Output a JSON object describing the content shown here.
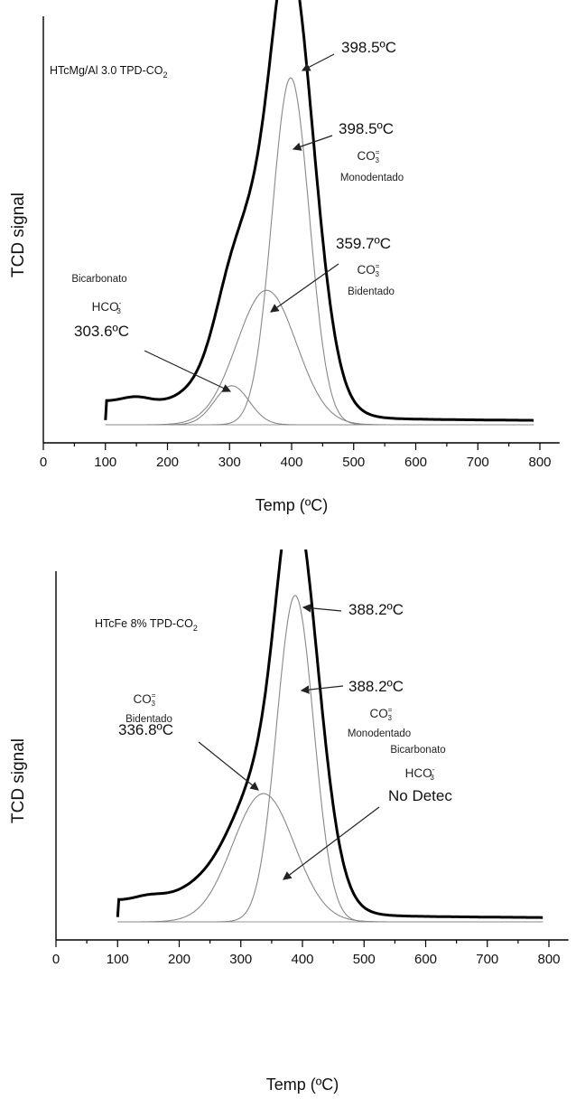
{
  "chart_data": [
    {
      "type": "line",
      "title": "HTcMg/Al 3.0  TPD-CO",
      "title_subscript": "2",
      "xlabel": "Temp (ºC)",
      "ylabel": "TCD signal",
      "xlim": [
        0,
        820
      ],
      "xticks": [
        "0",
        "100",
        "200",
        "300",
        "400",
        "500",
        "600",
        "700",
        "800"
      ],
      "yticks": false,
      "series": [
        {
          "role": "total",
          "peaks": [
            {
              "center": 303.6,
              "height": 0.09,
              "width": 28
            },
            {
              "center": 359.7,
              "height": 0.31,
              "width": 48
            },
            {
              "center": 398.5,
              "height": 0.8,
              "width": 30
            }
          ],
          "baseline": 0.02
        }
      ],
      "peaks": [
        {
          "species": "HCO",
          "species_charge": "-",
          "species_subscript": "3",
          "species_name": "Bicarbonato",
          "temp_label": "303.6ºC",
          "center": 303.6,
          "height": 0.09,
          "width": 28
        },
        {
          "species": "CO",
          "species_charge": "=",
          "species_subscript": "3",
          "species_name": "Bidentado",
          "temp_label": "359.7ºC",
          "center": 359.7,
          "height": 0.31,
          "width": 48
        },
        {
          "species": "CO",
          "species_charge": "=",
          "species_subscript": "3",
          "species_name": "Monodentado",
          "temp_label": "398.5ºC",
          "center": 398.5,
          "height": 0.8,
          "width": 30
        }
      ],
      "max_label": "398.5ºC"
    },
    {
      "type": "line",
      "title": "HTcFe 8%  TPD-CO",
      "title_subscript": "2",
      "xlabel": "Temp (ºC)",
      "ylabel": "TCD signal",
      "xlim": [
        0,
        820
      ],
      "xticks": [
        "0",
        "100",
        "200",
        "300",
        "400",
        "500",
        "600",
        "700",
        "800"
      ],
      "yticks": false,
      "peaks": [
        {
          "species": "CO",
          "species_charge": "=",
          "species_subscript": "3",
          "species_name": "Bidentado",
          "temp_label": "336.8ºC",
          "center": 336.8,
          "height": 0.33,
          "width": 50
        },
        {
          "species": "CO",
          "species_charge": "=",
          "species_subscript": "3",
          "species_name": "Monodentado",
          "temp_label": "388.2ºC",
          "center": 388.2,
          "height": 0.84,
          "width": 30
        },
        {
          "species": "HCO",
          "species_charge": "-",
          "species_subscript": "3",
          "species_name": "Bicarbonato",
          "temp_label": "No Detec"
        }
      ],
      "max_label": "388.2ºC"
    }
  ]
}
